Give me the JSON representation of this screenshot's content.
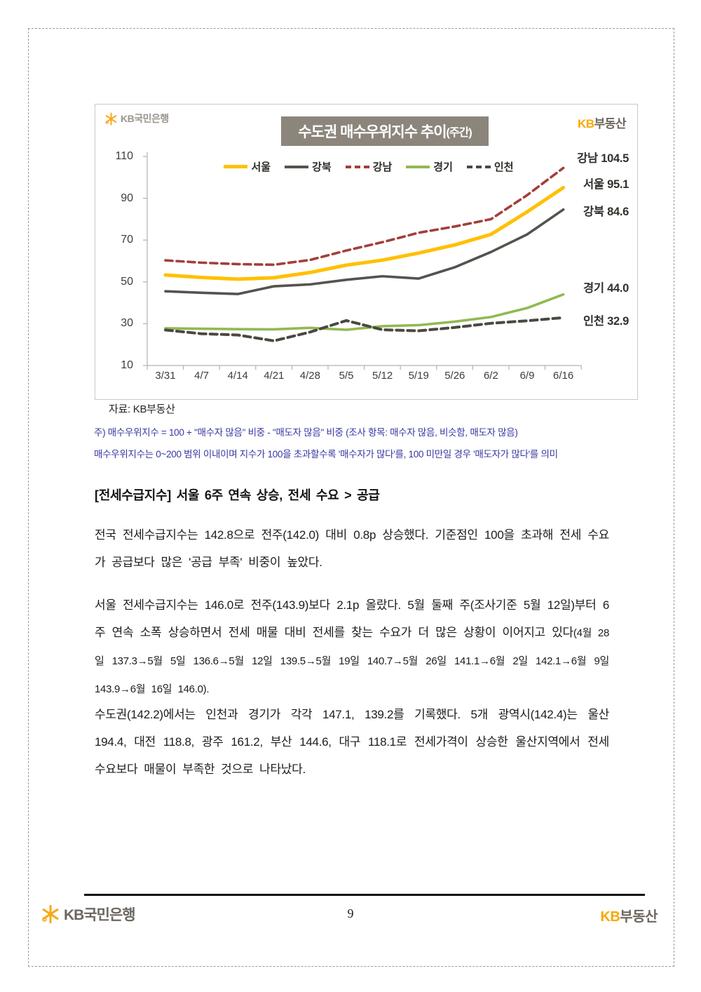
{
  "chart_card": {
    "logo_left_text": "KB국민은행",
    "logo_right": {
      "kb": "KB",
      "rest": "부동산"
    },
    "title": {
      "main": "수도권 매수우위지수 추이",
      "suffix": "(주간)"
    },
    "source": "자료: KB부동산"
  },
  "chart_data": {
    "type": "line",
    "title": "수도권 매수우위지수 추이(주간)",
    "categories": [
      "3/31",
      "4/7",
      "4/14",
      "4/21",
      "4/28",
      "5/5",
      "5/12",
      "5/19",
      "5/26",
      "6/2",
      "6/9",
      "6/16"
    ],
    "ylim": [
      10,
      110
    ],
    "yticks": [
      110,
      90,
      70,
      50,
      30,
      10
    ],
    "grid": false,
    "legend_position": "top-center",
    "series": [
      {
        "name": "서울",
        "color": "#FFC000",
        "dashed": false,
        "stroke_width": 5,
        "values": [
          53.3,
          52.1,
          51.3,
          52.0,
          54.5,
          58.0,
          60.4,
          63.8,
          67.7,
          72.7,
          83.5,
          95.1
        ],
        "end_label": "서울 95.1"
      },
      {
        "name": "강북",
        "color": "#56524D",
        "dashed": false,
        "stroke_width": 3.6,
        "values": [
          45.5,
          44.8,
          44.2,
          47.9,
          48.8,
          51.0,
          52.7,
          51.6,
          57.0,
          64.3,
          72.7,
          84.6
        ],
        "end_label": "강북 84.6"
      },
      {
        "name": "강남",
        "color": "#A33F3A",
        "dashed": true,
        "stroke_width": 3.6,
        "values": [
          60.3,
          59.2,
          58.5,
          58.2,
          60.5,
          65.0,
          69.0,
          73.5,
          76.5,
          80.0,
          91.5,
          104.5
        ],
        "end_label": "강남 104.5"
      },
      {
        "name": "경기",
        "color": "#92B953",
        "dashed": false,
        "stroke_width": 3.6,
        "values": [
          27.8,
          27.6,
          27.4,
          27.3,
          28.0,
          27.1,
          28.8,
          29.3,
          31.0,
          33.2,
          37.5,
          44.0
        ],
        "end_label": "경기 44.0"
      },
      {
        "name": "인천",
        "color": "#4A4840",
        "dashed": true,
        "stroke_width": 4,
        "values": [
          27.0,
          25.2,
          24.6,
          21.8,
          26.0,
          31.5,
          27.1,
          26.6,
          28.2,
          30.2,
          31.4,
          32.9
        ],
        "end_label": "인천 32.9"
      }
    ]
  },
  "notes": {
    "line1": "주) 매수우위지수 = 100 + \"매수자 많음\" 비중 - \"매도자 많음\" 비중  (조사 항목: 매수자 많음, 비슷함, 매도자 많음)",
    "line2": "매수우위지수는 0~200 범위 이내이며 지수가 100을 초과할수록 '매수자가 많다'를, 100 미만일 경우 '매도자가 많다'를 의미"
  },
  "body": {
    "headline": "[전세수급지수] 서울 6주 연속 상승, 전세 수요 > 공급",
    "p1": "전국 전세수급지수는 142.8으로 전주(142.0) 대비 0.8p 상승했다. 기준점인 100을 초과해 전세 수요가 공급보다 많은 '공급 부족' 비중이 높았다.",
    "p2_main": "서울 전세수급지수는 146.0로 전주(143.9)보다 2.1p 올랐다. 5월 둘째 주(조사기준 5월 12일)부터 6주 연속 소폭 상승하면서 전세 매물 대비 전세를 찾는 수요가 더 많은 상황이 이어지고 있다",
    "p2_detail": "(4월 28일 137.3→5월 5일 136.6→5월 12일 139.5→5월 19일 140.7→5월 26일 141.1→6월 2일 142.1→6월 9일 143.9→6월 16일 146.0).",
    "p3": "수도권(142.2)에서는 인천과 경기가 각각 147.1, 139.2를 기록했다. 5개 광역시(142.4)는 울산 194.4, 대전 118.8, 광주 161.2, 부산 144.6, 대구 118.1로 전세가격이 상승한 울산지역에서 전세 수요보다 매물이 부족한 것으로 나타났다."
  },
  "footer": {
    "logo_left_text": "KB국민은행",
    "page_number": "9",
    "logo_right": {
      "kb": "KB",
      "rest": "부동산"
    }
  }
}
